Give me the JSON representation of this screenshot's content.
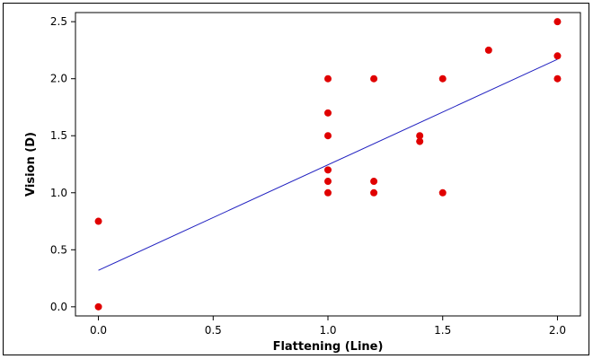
{
  "chart_data": {
    "type": "scatter",
    "title": "",
    "xlabel": "Flattening (Line)",
    "ylabel": "Vision (D)",
    "xlim": [
      -0.1,
      2.1
    ],
    "ylim": [
      -0.08,
      2.58
    ],
    "xticks": [
      "0.0",
      "0.5",
      "1.0",
      "1.5",
      "2.0"
    ],
    "yticks": [
      "0.0",
      "0.5",
      "1.0",
      "1.5",
      "2.0",
      "2.5"
    ],
    "grid": false,
    "point_color": "#e00000",
    "line_color": "#2020c0",
    "points": [
      {
        "x": 0.0,
        "y": 0.0
      },
      {
        "x": 0.0,
        "y": 0.75
      },
      {
        "x": 1.0,
        "y": 1.0
      },
      {
        "x": 1.0,
        "y": 1.1
      },
      {
        "x": 1.0,
        "y": 1.2
      },
      {
        "x": 1.0,
        "y": 1.5
      },
      {
        "x": 1.0,
        "y": 1.7
      },
      {
        "x": 1.0,
        "y": 2.0
      },
      {
        "x": 1.2,
        "y": 1.0
      },
      {
        "x": 1.2,
        "y": 1.1
      },
      {
        "x": 1.2,
        "y": 2.0
      },
      {
        "x": 1.4,
        "y": 1.45
      },
      {
        "x": 1.4,
        "y": 1.5
      },
      {
        "x": 1.5,
        "y": 1.0
      },
      {
        "x": 1.5,
        "y": 2.0
      },
      {
        "x": 1.7,
        "y": 2.25
      },
      {
        "x": 2.0,
        "y": 2.0
      },
      {
        "x": 2.0,
        "y": 2.2
      },
      {
        "x": 2.0,
        "y": 2.5
      }
    ],
    "fit_line": {
      "x": [
        0.0,
        2.0
      ],
      "y": [
        0.32,
        2.17
      ]
    }
  }
}
